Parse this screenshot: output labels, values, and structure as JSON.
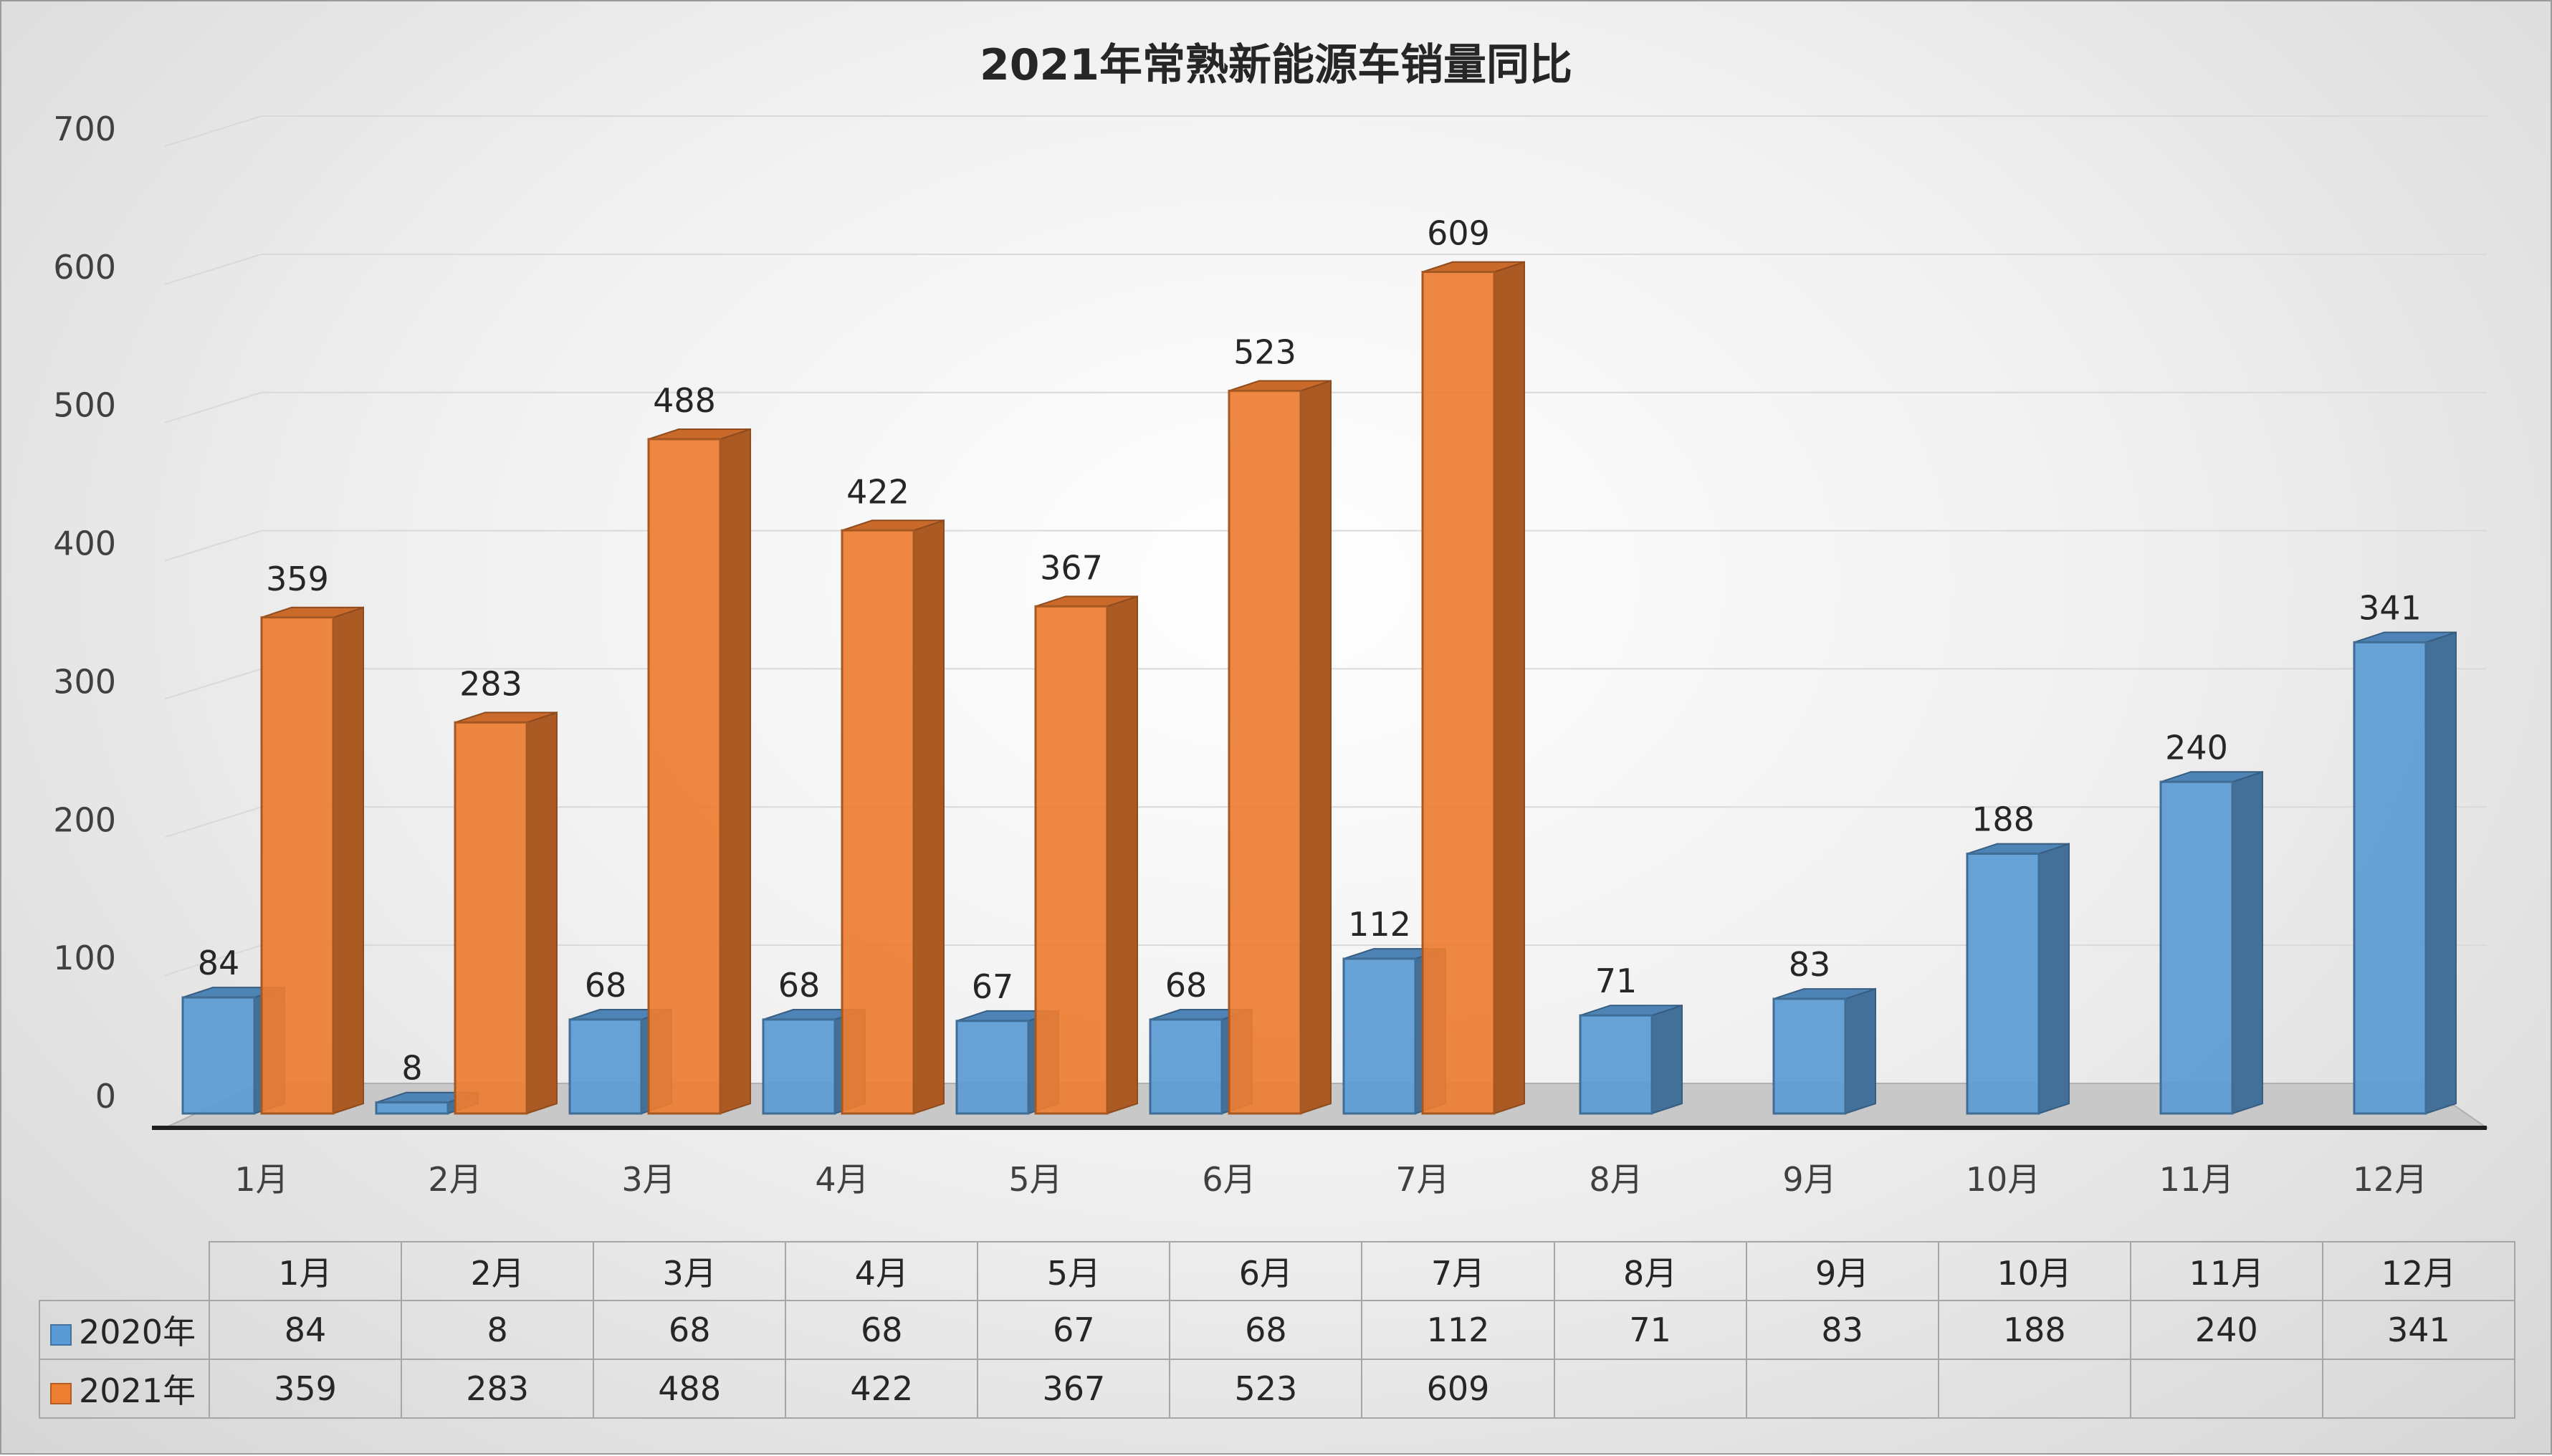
{
  "chart_data": {
    "type": "bar",
    "title": "2021年常熟新能源车销量同比",
    "categories": [
      "1月",
      "2月",
      "3月",
      "4月",
      "5月",
      "6月",
      "7月",
      "8月",
      "9月",
      "10月",
      "11月",
      "12月"
    ],
    "series": [
      {
        "name": "2020年",
        "color": "#5b9bd5",
        "values": [
          84,
          8,
          68,
          68,
          67,
          68,
          112,
          71,
          83,
          188,
          240,
          341
        ]
      },
      {
        "name": "2021年",
        "color": "#ed7d31",
        "values": [
          359,
          283,
          488,
          422,
          367,
          523,
          609,
          null,
          null,
          null,
          null,
          null
        ]
      }
    ],
    "ylim": [
      0,
      700
    ],
    "yticks": [
      0,
      100,
      200,
      300,
      400,
      500,
      600,
      700
    ],
    "grid": true,
    "style": "3d-clustered-column",
    "data_table": true
  }
}
